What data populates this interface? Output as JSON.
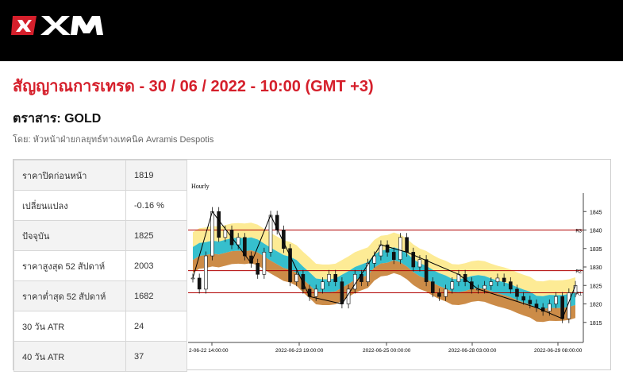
{
  "brand": {
    "name": "XM",
    "color": "#d51f2b"
  },
  "headline": "สัญญาณการเทรด - 30 / 06 / 2022 - 10:00 (GMT +3)",
  "instrument": "ตราสาร: GOLD",
  "byline": "โดย: หัวหน้าฝ่ายกลยุทธ์ทางเทคนิค Avramis Despotis",
  "stats": [
    {
      "label": "ราคาปิดก่อนหน้า",
      "value": "1819"
    },
    {
      "label": "เปลี่ยนแปลง",
      "value": "-0.16 %"
    },
    {
      "label": "ปัจจุบัน",
      "value": "1825"
    },
    {
      "label": "ราคาสูงสุด 52 สัปดาห์",
      "value": "2003"
    },
    {
      "label": "ราคาต่ำสุด 52 สัปดาห์",
      "value": "1682"
    },
    {
      "label": "30 วัน ATR",
      "value": "24"
    },
    {
      "label": "40 วัน ATR",
      "value": "37"
    }
  ],
  "chart_data": {
    "type": "candlestick",
    "title": "Hourly",
    "ylim": [
      1810,
      1850
    ],
    "yticks": [
      1815,
      1820,
      1825,
      1830,
      1835,
      1840,
      1845
    ],
    "xticks": [
      "2-06-22 14:00:00",
      "2022-06-23 19:00:00",
      "2022-06-25 00:00:00",
      "2022-06-28 03:00:00",
      "2022-06-29 08:00:00"
    ],
    "levels": [
      {
        "name": "R3",
        "value": 1840
      },
      {
        "name": "R2",
        "value": 1829
      },
      {
        "name": "R1",
        "value": 1823
      }
    ],
    "close": [
      1827,
      1824,
      1833,
      1845,
      1838,
      1840,
      1836,
      1838,
      1833,
      1831,
      1828,
      1834,
      1844,
      1840,
      1835,
      1826,
      1828,
      1824,
      1822,
      1824,
      1826,
      1828,
      1826,
      1820,
      1824,
      1828,
      1826,
      1831,
      1833,
      1836,
      1834,
      1832,
      1838,
      1834,
      1830,
      1832,
      1826,
      1823,
      1822,
      1824,
      1826,
      1828,
      1826,
      1824,
      1824,
      1825,
      1826,
      1827,
      1826,
      1824,
      1822,
      1821,
      1820,
      1819,
      1818,
      1820,
      1822,
      1816,
      1823,
      1825
    ],
    "colors": {
      "line": "#b00000",
      "bull": "#ffffff",
      "bear": "#111111",
      "cyan": "#20b8c8",
      "orange": "#c77f34",
      "yellow": "#fde98a"
    }
  }
}
